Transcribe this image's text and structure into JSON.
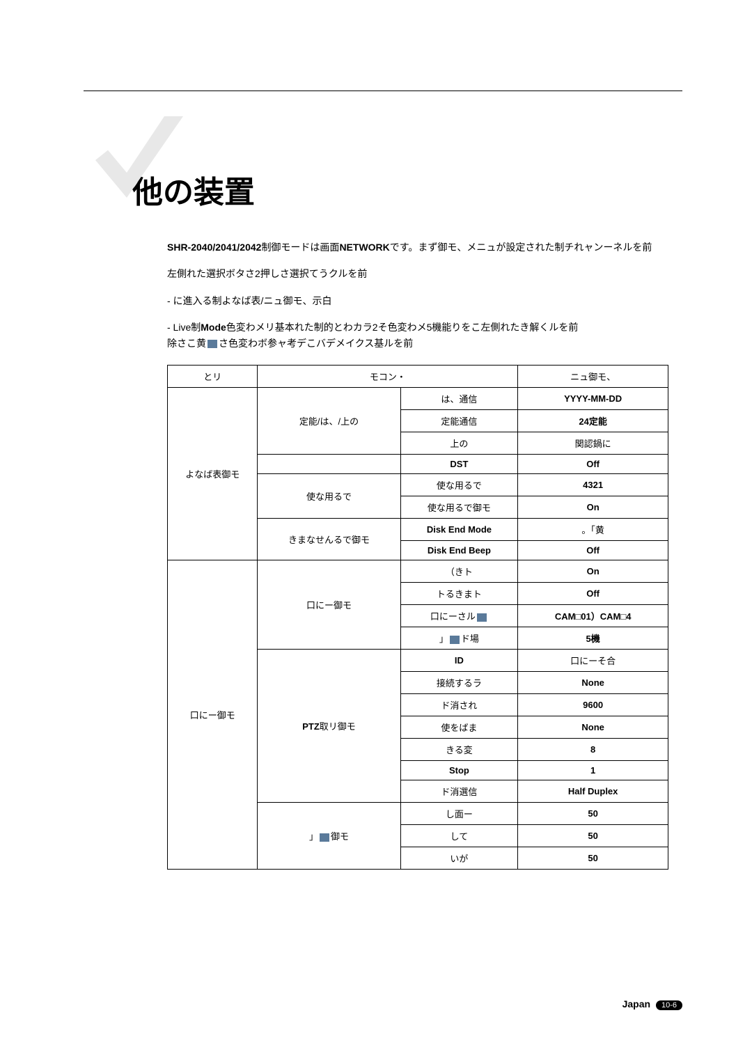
{
  "title": "他の装置",
  "intro": {
    "line1_prefix": "SHR-2040/2041/2042",
    "line1_mid": "制御モードは画面",
    "line1_bold": "NETWORK",
    "line1_suffix": "です。まず御モ、メニュが設定された制チれャンーネルを前",
    "line2": "左側れた選択ボタさ2押しさ選択てうクルを前",
    "bullet1": "- に進入る制よなば表/ニュ御モ、示白",
    "bullet2_prefix": "- Live制",
    "bullet2_bold": "Mode",
    "bullet2_suffix": "色変わメリ基本れた制的とわカラ2そ色変わメ5機能りをこ左側れたき解くルを前",
    "bullet2_cont": "除さこ黄",
    "bullet2_cont2": "さ色変わボ参ャ考デこバデメイクス基ルを前"
  },
  "table": {
    "headers": [
      "とリ",
      "モコン・",
      "",
      "ニュ御モ、"
    ],
    "rows": [
      {
        "c1": "よなば表御モ",
        "c2": "定能/は、/上の",
        "c3": "は、通信",
        "c4": "YYYY-MM-DD",
        "rs1": 8,
        "rs2": 3
      },
      {
        "c3": "定能通信",
        "c4": "24定能"
      },
      {
        "c3": "上の",
        "c4": "関認鍋に"
      },
      {
        "c2": "",
        "c3": "DST",
        "c4": "Off",
        "rs2": 1,
        "c4bold": true,
        "c3bold": true
      },
      {
        "c2": "使な用るで",
        "c3": "使な用るで",
        "c4": "4321",
        "rs2": 2,
        "c4bold": true
      },
      {
        "c3": "使な用るで御モ",
        "c4": "On",
        "c4bold": true
      },
      {
        "c2": "きまなせんるで御モ",
        "c3": "Disk End Mode",
        "c4": "。「黄",
        "rs2": 2,
        "c3bold": true
      },
      {
        "c3": "Disk End Beep",
        "c4": "Off",
        "c3bold": true,
        "c4bold": true
      },
      {
        "c1": "口にー御モ",
        "c2": "口にー御モ",
        "c3": "（きト",
        "c4": "On",
        "rs1": 13,
        "rs2": 4,
        "c4bold": true
      },
      {
        "c3": "トるきまト",
        "c4": "Off",
        "c4bold": true
      },
      {
        "c3": "口にーさル",
        "c4": "CAM□01）CAM□4",
        "c4bold": true
      },
      {
        "c3": "」■ド場",
        "c4": "5機",
        "c4bold": true
      },
      {
        "c2": "PTZ取リ御モ",
        "c3": "ID",
        "c4": "口にーそ合",
        "rs2": 6,
        "c3bold": true
      },
      {
        "c3": "接続するラ",
        "c4": "None",
        "c4bold": true
      },
      {
        "c3": "ド消され",
        "c4": "9600",
        "c4bold": true
      },
      {
        "c3": "使をばま",
        "c4": "None",
        "c4bold": true
      },
      {
        "c3": "きる変",
        "c4": "8",
        "c4bold": true
      },
      {
        "c3": "Stop",
        "c4": "1",
        "c3bold": true,
        "c4bold": true
      },
      {
        "c2": "",
        "c3": "ド消選信",
        "c4": "Half Duplex",
        "rs2": 1,
        "c4bold": true,
        "hide2": true
      },
      {
        "c2": "」■御モ",
        "c3": "し面ー",
        "c4": "50",
        "rs2": 3,
        "c4bold": true
      },
      {
        "c3": "して",
        "c4": "50",
        "c4bold": true
      },
      {
        "c3": "いが",
        "c4": "50",
        "c4bold": true
      }
    ]
  },
  "footer": {
    "label": "Japan",
    "page": "10-6"
  },
  "colors": {
    "checkmark": "#e8e8e8",
    "box_icon": "#5a7a9a"
  }
}
